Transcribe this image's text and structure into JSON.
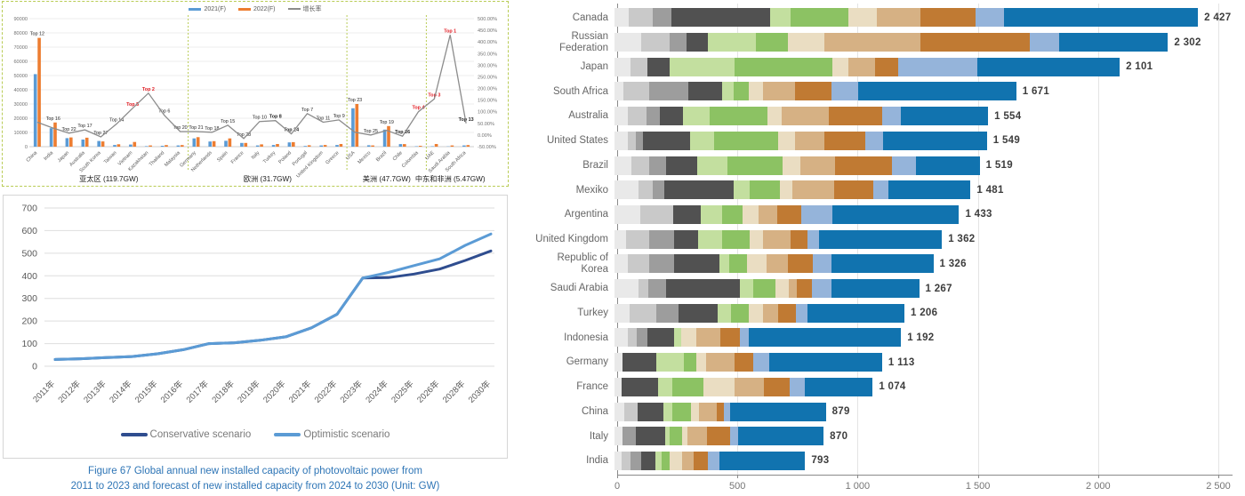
{
  "chart_data": [
    {
      "id": "pv-country-forecast",
      "type": "bar",
      "legend": [
        {
          "label": "2021(F)",
          "color": "#5b9bd5"
        },
        {
          "label": "2022(F)",
          "color": "#ed7d31"
        },
        {
          "label": "增长率",
          "color": "#8c8c8c"
        }
      ],
      "left_axis_labels": [
        "0",
        "10000",
        "20000",
        "30000",
        "40000",
        "50000",
        "60000",
        "70000",
        "80000",
        "90000"
      ],
      "right_axis_labels": [
        "500.00%",
        "450.00%",
        "400.00%",
        "350.00%",
        "300.00%",
        "250.00%",
        "200.00%",
        "150.00%",
        "100.00%",
        "50.00%",
        "0.00%",
        "-50.00%"
      ],
      "ylim": [
        0,
        90000
      ],
      "right_ylim": [
        -50,
        500
      ],
      "groups": [
        {
          "name": "亚太区 (119.7GW)",
          "countries": [
            {
              "name": "China",
              "top": "Top 12",
              "red": false,
              "bold": false,
              "v2021": 51000,
              "v2022": 76500,
              "growth": 55
            },
            {
              "name": "India",
              "top": "Top 16",
              "red": false,
              "bold": false,
              "v2021": 13000,
              "v2022": 17000,
              "growth": 30
            },
            {
              "name": "Japan",
              "top": "Top 22",
              "red": false,
              "bold": false,
              "v2021": 6000,
              "v2022": 6500,
              "growth": 8
            },
            {
              "name": "Australia",
              "top": "Top 17",
              "red": false,
              "bold": false,
              "v2021": 5000,
              "v2022": 6300,
              "growth": 22
            },
            {
              "name": "South Korea",
              "top": "Top 27",
              "red": false,
              "bold": false,
              "v2021": 4000,
              "v2022": 3700,
              "growth": -8
            },
            {
              "name": "Taiwan",
              "top": "Top 14",
              "red": false,
              "bold": false,
              "v2021": 1200,
              "v2022": 1700,
              "growth": 48
            },
            {
              "name": "Vietnam",
              "top": "Top 5",
              "red": true,
              "bold": true,
              "v2021": 1500,
              "v2022": 3300,
              "growth": 115
            },
            {
              "name": "Kazakhstan",
              "top": "Top 2",
              "red": true,
              "bold": true,
              "v2021": 400,
              "v2022": 900,
              "growth": 180
            },
            {
              "name": "Thailand",
              "top": "Top 6",
              "red": false,
              "bold": false,
              "v2021": 600,
              "v2022": 1100,
              "growth": 85
            },
            {
              "name": "Malaysia",
              "top": "Top 20",
              "red": false,
              "bold": false,
              "v2021": 900,
              "v2022": 1100,
              "growth": 15
            }
          ]
        },
        {
          "name": "欧洲 (31.7GW)",
          "countries": [
            {
              "name": "Germany",
              "top": "Top 21",
              "red": false,
              "bold": false,
              "v2021": 5800,
              "v2022": 6700,
              "growth": 15
            },
            {
              "name": "Netherlands",
              "top": "Top 18",
              "red": false,
              "bold": false,
              "v2021": 3600,
              "v2022": 3900,
              "growth": 12
            },
            {
              "name": "Spain",
              "top": "Top 15",
              "red": false,
              "bold": false,
              "v2021": 4100,
              "v2022": 5800,
              "growth": 42
            },
            {
              "name": "France",
              "top": "Top 28",
              "red": false,
              "bold": false,
              "v2021": 2600,
              "v2022": 2600,
              "growth": -15
            },
            {
              "name": "Italy",
              "top": "Top 10",
              "red": false,
              "bold": false,
              "v2021": 900,
              "v2022": 1600,
              "growth": 58
            },
            {
              "name": "Turkey",
              "top": "Top 8",
              "red": false,
              "bold": true,
              "v2021": 1200,
              "v2022": 1900,
              "growth": 62
            },
            {
              "name": "Poland",
              "top": "Top 24",
              "red": false,
              "bold": true,
              "v2021": 3000,
              "v2022": 3200,
              "growth": 5
            },
            {
              "name": "Portugal",
              "top": "Top 7",
              "red": false,
              "bold": false,
              "v2021": 500,
              "v2022": 1000,
              "growth": 92
            },
            {
              "name": "United Kingdom",
              "top": "Top 11",
              "red": false,
              "bold": false,
              "v2021": 900,
              "v2022": 1200,
              "growth": 55
            },
            {
              "name": "Greece",
              "top": "Top 9",
              "red": false,
              "bold": false,
              "v2021": 1200,
              "v2022": 1900,
              "growth": 65
            }
          ]
        },
        {
          "name": "美洲 (47.7GW)",
          "countries": [
            {
              "name": "USA",
              "top": "Top 23",
              "red": false,
              "bold": false,
              "v2021": 27000,
              "v2022": 30000,
              "growth": 12
            },
            {
              "name": "Mexico",
              "top": "Top 25",
              "red": false,
              "bold": false,
              "v2021": 1000,
              "v2022": 900,
              "growth": 0
            },
            {
              "name": "Brazil",
              "top": "Top 19",
              "red": false,
              "bold": false,
              "v2021": 12000,
              "v2022": 14500,
              "growth": 20
            },
            {
              "name": "Chile",
              "top": "Top 26",
              "red": false,
              "bold": true,
              "v2021": 1800,
              "v2022": 1800,
              "growth": -5
            },
            {
              "name": "Colombia",
              "top": "Top 4",
              "red": true,
              "bold": true,
              "v2021": 300,
              "v2022": 600,
              "growth": 100
            }
          ]
        },
        {
          "name": "中东和非洲 (5.47GW)",
          "countries": [
            {
              "name": "UAE",
              "top": "Top 3",
              "red": true,
              "bold": true,
              "v2021": 300,
              "v2022": 1900,
              "growth": 155
            },
            {
              "name": "Saudi Arabia",
              "top": "Top 1",
              "red": true,
              "bold": true,
              "v2021": 200,
              "v2022": 900,
              "growth": 430
            },
            {
              "name": "South Africa",
              "top": "Top 13",
              "red": false,
              "bold": true,
              "v2021": 900,
              "v2022": 1100,
              "growth": 50
            }
          ]
        }
      ]
    },
    {
      "id": "global-annual-installed-capacity",
      "type": "line",
      "categories": [
        "2011年",
        "2012年",
        "2013年",
        "2014年",
        "2015年",
        "2016年",
        "2017年",
        "2018年",
        "2019年",
        "2020年",
        "2021年",
        "2022年",
        "2023年",
        "2024年",
        "2025年",
        "2026年",
        "2028年",
        "2030年"
      ],
      "series": [
        {
          "name": "Conservative scenario",
          "color": "#2f4d8f",
          "values": [
            30,
            33,
            38,
            43,
            55,
            73,
            100,
            104,
            115,
            130,
            170,
            230,
            390,
            392,
            408,
            430,
            468,
            510
          ]
        },
        {
          "name": "Optimistic scenario",
          "color": "#5b9bd5",
          "values": [
            30,
            33,
            38,
            43,
            55,
            73,
            100,
            104,
            115,
            130,
            170,
            230,
            390,
            415,
            445,
            475,
            535,
            585
          ]
        }
      ],
      "y_tick_labels": [
        "0",
        "100",
        "200",
        "300",
        "400",
        "500",
        "600",
        "700"
      ],
      "ylim": [
        0,
        700
      ],
      "caption": [
        "Figure 67 Global annual new installed capacity of photovoltaic power from",
        "2011 to 2023 and forecast of new installed capacity from 2024 to 2030 (Unit: GW)"
      ]
    },
    {
      "id": "country-stacked-totals",
      "type": "stacked-bar-horizontal",
      "xlim": [
        0,
        2500
      ],
      "x_tick_values": [
        0,
        500,
        1000,
        1500,
        2000,
        2500
      ],
      "x_tick_labels": [
        "0",
        "500",
        "1 000",
        "1 500",
        "2 000",
        "2 500"
      ],
      "segment_colors": [
        "#e9e9e9",
        "#c9c9c9",
        "#9d9d9d",
        "#515151",
        "#c3df9f",
        "#8cc263",
        "#eaddc2",
        "#d6b184",
        "#c07a33",
        "#95b4da",
        "#1173af"
      ],
      "rows": [
        {
          "country": "Canada",
          "value_label": "2 427",
          "total": 2427,
          "segments": [
            58,
            100,
            78,
            411,
            87,
            240,
            116,
            182,
            229,
            120,
            806
          ]
        },
        {
          "country": "Russian Federation",
          "value_label": "2 302",
          "total": 2302,
          "segments": [
            110,
            120,
            70,
            88,
            200,
            134,
            150,
            400,
            455,
            123,
            452
          ]
        },
        {
          "country": "Japan",
          "value_label": "2 101",
          "total": 2101,
          "segments": [
            65,
            73,
            0,
            91,
            272,
            404,
            69,
            109,
            98,
            327,
            593
          ]
        },
        {
          "country": "South Africa",
          "value_label": "1 671",
          "total": 1671,
          "segments": [
            36,
            110,
            162,
            138,
            48,
            65,
            60,
            133,
            151,
            109,
            659
          ]
        },
        {
          "country": "Australia",
          "value_label": "1 554",
          "total": 1554,
          "segments": [
            54,
            79,
            54,
            97,
            110,
            242,
            60,
            194,
            224,
            78,
            362
          ]
        },
        {
          "country": "United States",
          "value_label": "1 549",
          "total": 1549,
          "segments": [
            54,
            36,
            29,
            194,
            102,
            267,
            70,
            122,
            169,
            73,
            433
          ]
        },
        {
          "country": "Brazil",
          "value_label": "1 519",
          "total": 1519,
          "segments": [
            72,
            72,
            72,
            127,
            127,
            230,
            72,
            145,
            236,
            100,
            266
          ]
        },
        {
          "country": "Mexiko",
          "value_label": "1 481",
          "total": 1481,
          "segments": [
            98,
            60,
            48,
            290,
            66,
            127,
            50,
            176,
            160,
            66,
            340
          ]
        },
        {
          "country": "Argentina",
          "value_label": "1 433",
          "total": 1433,
          "segments": [
            109,
            134,
            0,
            115,
            91,
            84,
            65,
            79,
            98,
            133,
            525
          ]
        },
        {
          "country": "United Kingdom",
          "value_label": "1 362",
          "total": 1362,
          "segments": [
            47,
            97,
            102,
            103,
            97,
            115,
            55,
            115,
            73,
            47,
            511
          ]
        },
        {
          "country": "Republic of Korea",
          "value_label": "1 326",
          "total": 1326,
          "segments": [
            55,
            91,
            102,
            189,
            40,
            73,
            84,
            87,
            102,
            80,
            423
          ]
        },
        {
          "country": "Saudi Arabia",
          "value_label": "1 267",
          "total": 1267,
          "segments": [
            98,
            44,
            73,
            308,
            55,
            91,
            55,
            36,
            62,
            80,
            365
          ]
        },
        {
          "country": "Turkey",
          "value_label": "1 206",
          "total": 1206,
          "segments": [
            62,
            113,
            91,
            163,
            55,
            73,
            62,
            62,
            73,
            47,
            405
          ]
        },
        {
          "country": "Indonesia",
          "value_label": "1 192",
          "total": 1192,
          "segments": [
            55,
            36,
            47,
            110,
            29,
            0,
            62,
            102,
            80,
            36,
            635
          ]
        },
        {
          "country": "Germany",
          "value_label": "1 113",
          "total": 1113,
          "segments": [
            33,
            0,
            0,
            142,
            112,
            54,
            40,
            120,
            76,
            65,
            471
          ]
        },
        {
          "country": "France",
          "value_label": "1 074",
          "total": 1074,
          "segments": [
            30,
            0,
            0,
            150,
            60,
            130,
            130,
            120,
            110,
            60,
            284
          ]
        },
        {
          "country": "China",
          "value_label": "879",
          "total": 879,
          "segments": [
            40,
            55,
            0,
            110,
            35,
            80,
            30,
            75,
            30,
            25,
            399
          ]
        },
        {
          "country": "Italy",
          "value_label": "870",
          "total": 870,
          "segments": [
            35,
            0,
            55,
            120,
            20,
            50,
            25,
            80,
            95,
            35,
            355
          ]
        },
        {
          "country": "India",
          "value_label": "793",
          "total": 793,
          "segments": [
            30,
            35,
            45,
            60,
            25,
            35,
            50,
            50,
            60,
            45,
            358
          ]
        }
      ]
    }
  ]
}
